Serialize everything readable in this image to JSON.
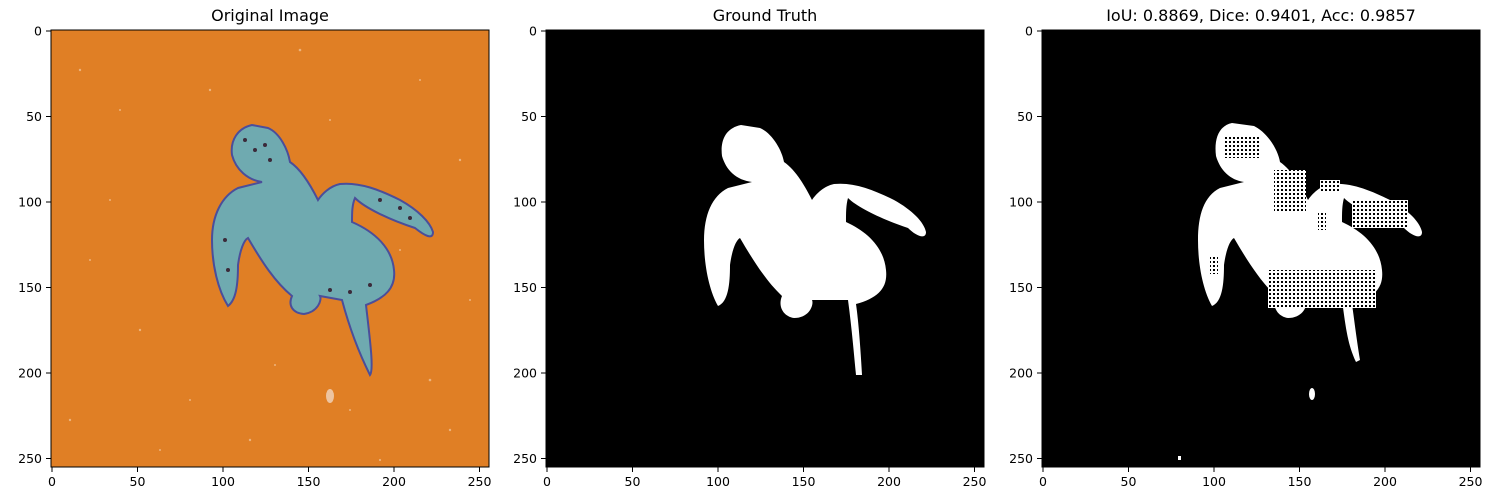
{
  "chart_data": [
    {
      "type": "image",
      "title": "Original Image",
      "xlim": [
        0,
        255
      ],
      "ylim": [
        255,
        0
      ],
      "xticks": [
        "0",
        "50",
        "100",
        "150",
        "200",
        "250"
      ],
      "yticks": [
        "0",
        "50",
        "100",
        "150",
        "200",
        "250"
      ],
      "background": "#E07F25",
      "foreground": "#6FAAB0",
      "subject": "sea turtle"
    },
    {
      "type": "image",
      "title": "Ground Truth",
      "xlim": [
        0,
        255
      ],
      "ylim": [
        255,
        0
      ],
      "xticks": [
        "0",
        "50",
        "100",
        "150",
        "200",
        "250"
      ],
      "yticks": [
        "0",
        "50",
        "100",
        "150",
        "200",
        "250"
      ],
      "background": "#000000",
      "foreground": "#ffffff"
    },
    {
      "type": "image",
      "title": "IoU: 0.8869, Dice: 0.9401, Acc: 0.9857",
      "xlim": [
        0,
        255
      ],
      "ylim": [
        255,
        0
      ],
      "xticks": [
        "0",
        "50",
        "100",
        "150",
        "200",
        "250"
      ],
      "yticks": [
        "0",
        "50",
        "100",
        "150",
        "200",
        "250"
      ],
      "background": "#000000",
      "foreground": "#ffffff",
      "metrics": {
        "iou": 0.8869,
        "dice": 0.9401,
        "acc": 0.9857
      }
    }
  ]
}
